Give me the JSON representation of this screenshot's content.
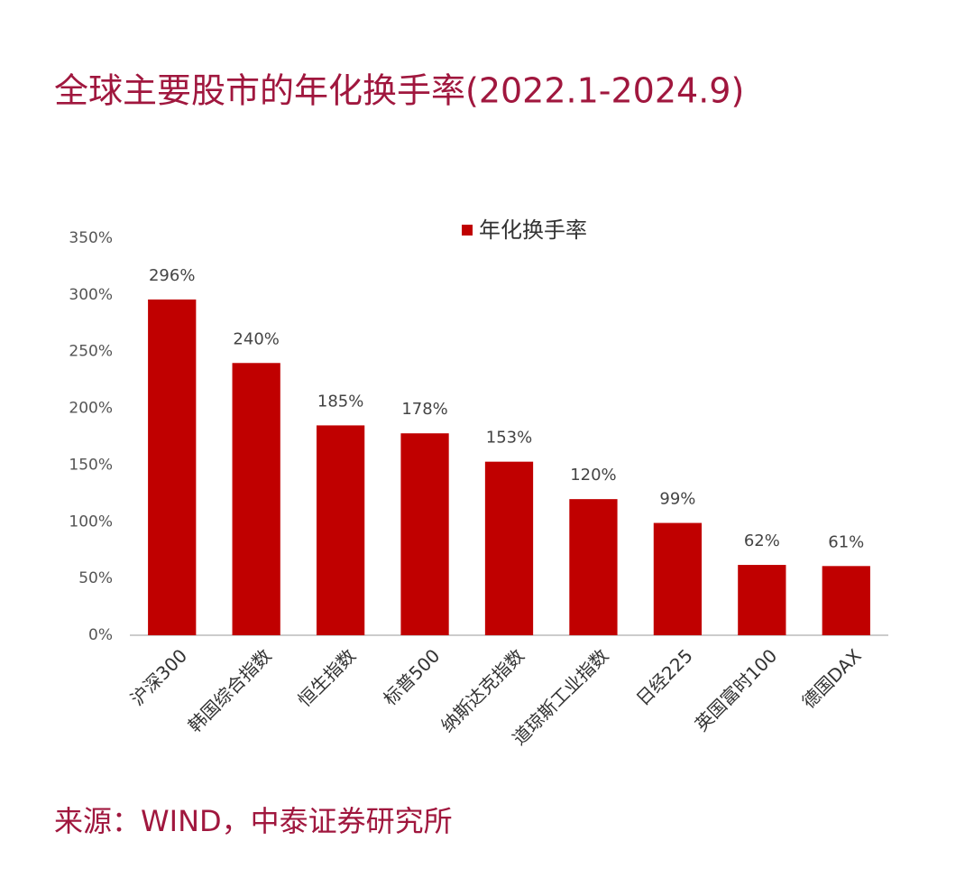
{
  "chart_data": {
    "type": "bar",
    "title": "全球主要股市的年化换手率(2022.1-2024.9)",
    "source": "来源：WIND，中泰证券研究所",
    "categories": [
      "沪深300",
      "韩国综合指数",
      "恒生指数",
      "标普500",
      "纳斯达克指数",
      "道琼斯工业指数",
      "日经225",
      "英国富时100",
      "德国DAX"
    ],
    "series": [
      {
        "name": "年化换手率",
        "color": "#c00000",
        "values": [
          296,
          240,
          185,
          178,
          153,
          120,
          99,
          62,
          61
        ],
        "value_labels": [
          "296%",
          "240%",
          "185%",
          "178%",
          "153%",
          "120%",
          "99%",
          "62%",
          "61%"
        ]
      }
    ],
    "ylim": [
      0,
      350
    ],
    "yticks": [
      {
        "value": 0,
        "label": "0%"
      },
      {
        "value": 50,
        "label": "50%"
      },
      {
        "value": 100,
        "label": "100%"
      },
      {
        "value": 150,
        "label": "150%"
      },
      {
        "value": 200,
        "label": "200%"
      },
      {
        "value": 250,
        "label": "250%"
      },
      {
        "value": 300,
        "label": "300%"
      },
      {
        "value": 350,
        "label": "350%"
      }
    ],
    "grid": false,
    "legend": "top"
  }
}
